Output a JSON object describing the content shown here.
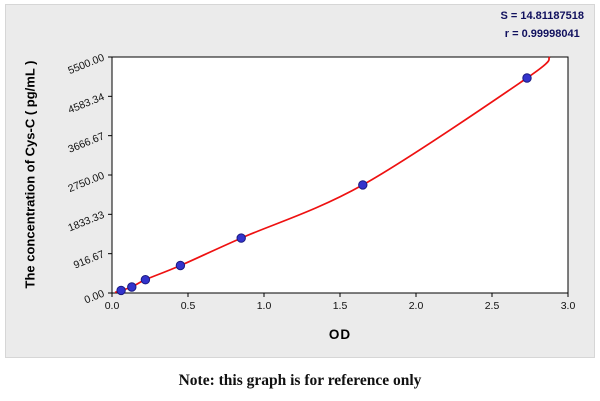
{
  "chart_data": {
    "type": "scatter",
    "title": "",
    "s_label": "S = 14.81187518",
    "r_label": "r = 0.99998041",
    "xlabel": "OD",
    "ylabel": "The concentration of Cys-C ( pg/mL )",
    "xlim": [
      0,
      3.0
    ],
    "ylim": [
      0,
      5500
    ],
    "x_ticks": [
      "0.0",
      "0.5",
      "1.0",
      "1.5",
      "2.0",
      "2.5",
      "3.0"
    ],
    "y_ticks": [
      "0.00",
      "916.67",
      "1833.33",
      "2750.00",
      "3666.67",
      "4583.34",
      "5500.00"
    ],
    "points": [
      [
        0.06,
        60
      ],
      [
        0.13,
        140
      ],
      [
        0.22,
        310
      ],
      [
        0.45,
        640
      ],
      [
        0.85,
        1280
      ],
      [
        1.65,
        2520
      ],
      [
        2.73,
        5010
      ]
    ],
    "curve": [
      [
        0.02,
        15
      ],
      [
        0.06,
        60
      ],
      [
        0.13,
        140
      ],
      [
        0.22,
        310
      ],
      [
        0.45,
        640
      ],
      [
        0.85,
        1280
      ],
      [
        1.65,
        2520
      ],
      [
        2.73,
        5010
      ],
      [
        2.88,
        5500
      ]
    ],
    "grid": false,
    "legend": null,
    "colors": {
      "curve": "#ee1111",
      "point": "#3333cc",
      "point_edge": "#1a1a80"
    }
  },
  "note": "Note: this graph is for reference only"
}
